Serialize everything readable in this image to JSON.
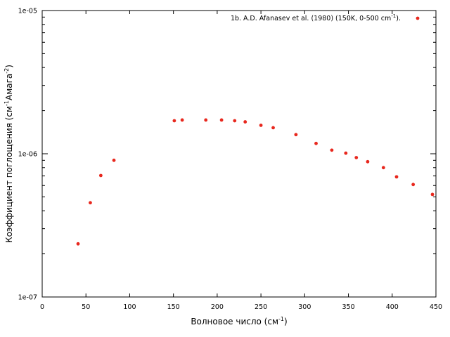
{
  "chart_data": {
    "type": "scatter",
    "xlabel": "Волновое число (см",
    "xlabel_sup": "-1",
    "xlabel_end": ")",
    "ylabel": "Коэффициент поглощения (см",
    "ylabel_sup1": "-1",
    "ylabel_mid": "Амага",
    "ylabel_sup2": "-2",
    "ylabel_end": ")",
    "xlim": [
      0,
      450
    ],
    "ylim": [
      1e-07,
      1e-05
    ],
    "yscale": "log",
    "x_ticks": [
      "0",
      "50",
      "100",
      "150",
      "200",
      "250",
      "300",
      "350",
      "400",
      "450"
    ],
    "y_ticks": [
      "1e-07",
      "1e-06",
      "1e-05"
    ],
    "grid": false,
    "legend_position": "top-right",
    "marker_color": "#e8281e",
    "series": [
      {
        "name": "1b. A.D. Afanasev et al. (1980) (150K, 0-500 cm",
        "name_sup": "-1",
        "name_end": ").",
        "x": [
          41,
          55,
          67,
          82,
          151,
          160,
          187,
          205,
          220,
          232,
          250,
          264,
          290,
          313,
          331,
          347,
          359,
          372,
          390,
          405,
          424,
          446
        ],
        "y": [
          2.35e-07,
          4.55e-07,
          7.05e-07,
          9e-07,
          1.7e-06,
          1.72e-06,
          1.72e-06,
          1.72e-06,
          1.7e-06,
          1.67e-06,
          1.58e-06,
          1.52e-06,
          1.36e-06,
          1.18e-06,
          1.06e-06,
          1.01e-06,
          9.4e-07,
          8.8e-07,
          8e-07,
          6.9e-07,
          6.1e-07,
          5.2e-07
        ]
      }
    ]
  }
}
